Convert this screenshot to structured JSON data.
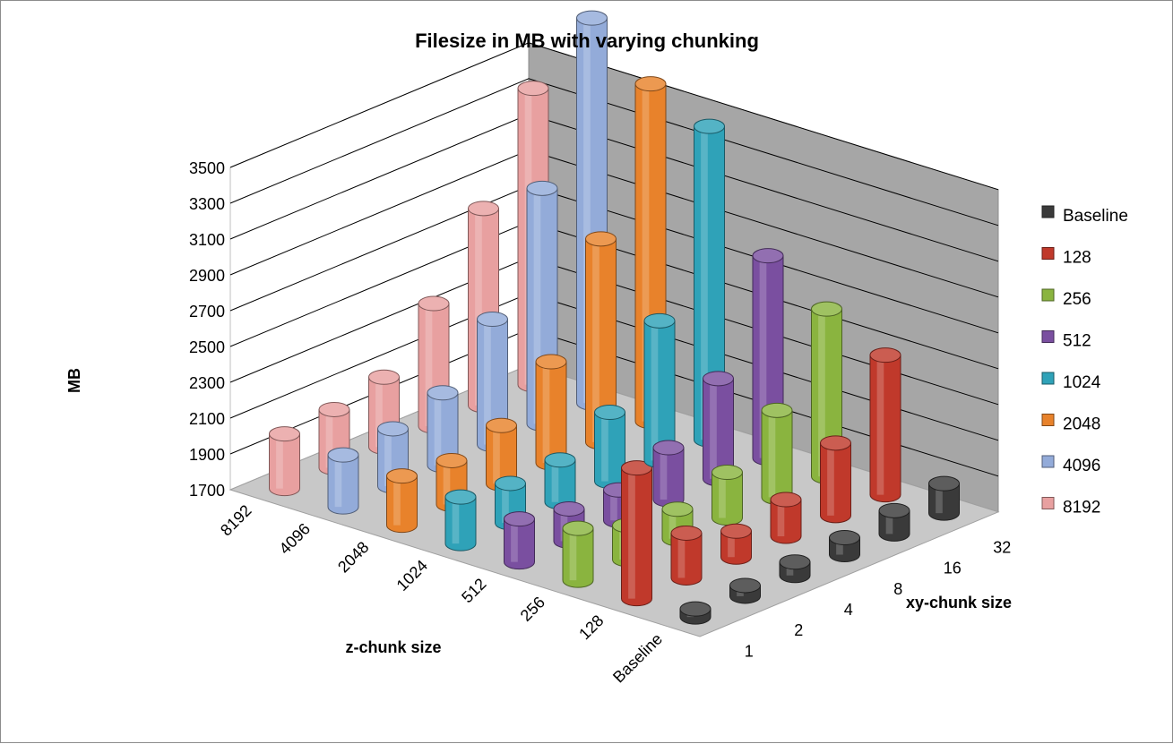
{
  "chart_data": {
    "type": "bar3d",
    "title": "Filesize in MB  with varying chunking",
    "ylabel": "MB",
    "z_axis_label": "z-chunk size",
    "x_axis_label": "xy-chunk size",
    "ylim": [
      1700,
      3500
    ],
    "yticks": [
      1700,
      1900,
      2100,
      2300,
      2500,
      2700,
      2900,
      3100,
      3300,
      3500
    ],
    "z_categories": [
      "8192",
      "4096",
      "2048",
      "1024",
      "512",
      "256",
      "128",
      "Baseline"
    ],
    "xy_categories": [
      "1",
      "2",
      "4",
      "8",
      "16",
      "32"
    ],
    "legend_position": "right",
    "series": [
      {
        "name": "Baseline",
        "color": "#3a3a3a",
        "values": [
          1745,
          1760,
          1775,
          1795,
          1830,
          1865
        ]
      },
      {
        "name": "128",
        "color": "#c0392b",
        "values": [
          2430,
          1950,
          1845,
          1905,
          2105,
          2480
        ]
      },
      {
        "name": "256",
        "color": "#8ab43f",
        "values": [
          1990,
          1890,
          1865,
          1955,
          2185,
          2635
        ]
      },
      {
        "name": "512",
        "color": "#7a4fa0",
        "values": [
          1940,
          1880,
          1870,
          1990,
          2260,
          2830
        ]
      },
      {
        "name": "1024",
        "color": "#2fa2b8",
        "values": [
          1960,
          1920,
          1935,
          2085,
          2480,
          3450
        ]
      },
      {
        "name": "2048",
        "color": "#e8822b",
        "values": [
          1975,
          1945,
          2025,
          2265,
          2835,
          3585
        ]
      },
      {
        "name": "4096",
        "color": "#93abd9",
        "values": [
          1990,
          2020,
          2105,
          2400,
          3015,
          3850
        ]
      },
      {
        "name": "8192",
        "color": "#e8a0a0",
        "values": [
          2005,
          2025,
          2090,
          2385,
          2800,
          3355
        ]
      }
    ]
  }
}
